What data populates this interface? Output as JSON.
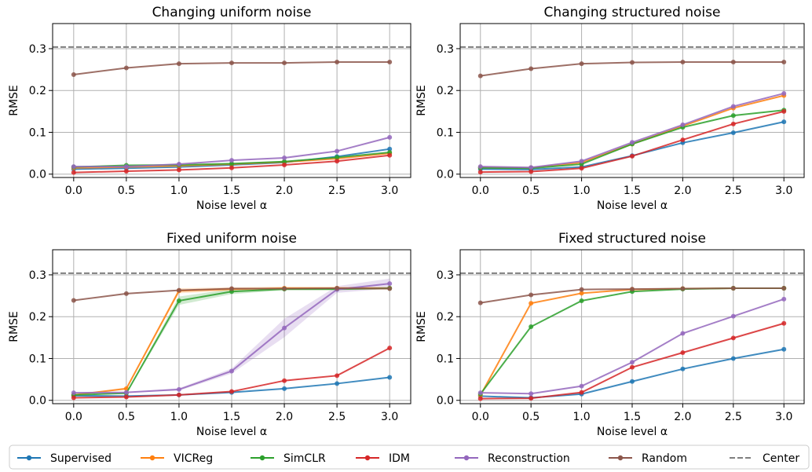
{
  "colors": {
    "Supervised": "#1f77b4",
    "VICReg": "#ff7f0e",
    "SimCLR": "#2ca02c",
    "IDM": "#d62728",
    "Reconstruction": "#9467bd",
    "Random": "#8c564b",
    "Center": "#7f7f7f"
  },
  "legend": {
    "placement": "bottom",
    "entries": [
      {
        "name": "Supervised",
        "style": "line-marker"
      },
      {
        "name": "VICReg",
        "style": "line"
      },
      {
        "name": "SimCLR",
        "style": "line"
      },
      {
        "name": "IDM",
        "style": "line"
      },
      {
        "name": "Reconstruction",
        "style": "line"
      },
      {
        "name": "Random",
        "style": "line"
      },
      {
        "name": "Center",
        "style": "dashed"
      }
    ]
  },
  "chart_data": [
    {
      "type": "line",
      "title": "Changing uniform noise",
      "xlabel": "Noise level α",
      "ylabel": "RMSE",
      "x": [
        0.0,
        0.5,
        1.0,
        1.5,
        2.0,
        2.5,
        3.0
      ],
      "xticks": [
        "0.0",
        "0.5",
        "1.0",
        "1.5",
        "2.0",
        "2.5",
        "3.0"
      ],
      "yticks": [
        "0.0",
        "0.1",
        "0.2",
        "0.3"
      ],
      "xlim": [
        -0.2,
        3.2
      ],
      "ylim": [
        -0.008,
        0.36
      ],
      "grid": true,
      "center": 0.304,
      "series": [
        {
          "name": "Supervised",
          "values": [
            0.012,
            0.014,
            0.017,
            0.022,
            0.028,
            0.042,
            0.06
          ]
        },
        {
          "name": "VICReg",
          "values": [
            0.015,
            0.017,
            0.02,
            0.024,
            0.029,
            0.037,
            0.05
          ]
        },
        {
          "name": "SimCLR",
          "values": [
            0.017,
            0.021,
            0.022,
            0.025,
            0.03,
            0.04,
            0.052
          ]
        },
        {
          "name": "IDM",
          "values": [
            0.004,
            0.007,
            0.01,
            0.015,
            0.022,
            0.031,
            0.045
          ]
        },
        {
          "name": "Reconstruction",
          "values": [
            0.018,
            0.018,
            0.024,
            0.033,
            0.039,
            0.055,
            0.088
          ]
        },
        {
          "name": "Random",
          "values": [
            0.238,
            0.254,
            0.264,
            0.266,
            0.266,
            0.268,
            0.268
          ]
        }
      ]
    },
    {
      "type": "line",
      "title": "Changing structured noise",
      "xlabel": "Noise level α",
      "ylabel": "RMSE",
      "x": [
        0.0,
        0.5,
        1.0,
        1.5,
        2.0,
        2.5,
        3.0
      ],
      "xticks": [
        "0.0",
        "0.5",
        "1.0",
        "1.5",
        "2.0",
        "2.5",
        "3.0"
      ],
      "yticks": [
        "0.0",
        "0.1",
        "0.2",
        "0.3"
      ],
      "xlim": [
        -0.2,
        3.2
      ],
      "ylim": [
        -0.008,
        0.36
      ],
      "grid": true,
      "center": 0.304,
      "series": [
        {
          "name": "Supervised",
          "values": [
            0.012,
            0.011,
            0.017,
            0.044,
            0.075,
            0.099,
            0.125
          ]
        },
        {
          "name": "VICReg",
          "values": [
            0.016,
            0.015,
            0.028,
            0.072,
            0.115,
            0.158,
            0.188
          ]
        },
        {
          "name": "SimCLR",
          "values": [
            0.015,
            0.014,
            0.024,
            0.072,
            0.112,
            0.14,
            0.153
          ]
        },
        {
          "name": "IDM",
          "values": [
            0.005,
            0.006,
            0.014,
            0.043,
            0.082,
            0.12,
            0.15
          ]
        },
        {
          "name": "Reconstruction",
          "values": [
            0.018,
            0.016,
            0.031,
            0.076,
            0.118,
            0.162,
            0.193
          ]
        },
        {
          "name": "Random",
          "values": [
            0.235,
            0.252,
            0.264,
            0.267,
            0.268,
            0.268,
            0.268
          ]
        }
      ]
    },
    {
      "type": "line",
      "title": "Fixed uniform noise",
      "xlabel": "Noise level α",
      "ylabel": "RMSE",
      "x": [
        0.0,
        0.5,
        1.0,
        1.5,
        2.0,
        2.5,
        3.0
      ],
      "xticks": [
        "0.0",
        "0.5",
        "1.0",
        "1.5",
        "2.0",
        "2.5",
        "3.0"
      ],
      "yticks": [
        "0.0",
        "0.1",
        "0.2",
        "0.3"
      ],
      "xlim": [
        -0.2,
        3.2
      ],
      "ylim": [
        -0.008,
        0.36
      ],
      "grid": true,
      "center": 0.304,
      "series": [
        {
          "name": "Supervised",
          "values": [
            0.011,
            0.01,
            0.013,
            0.019,
            0.028,
            0.04,
            0.055
          ]
        },
        {
          "name": "VICReg",
          "values": [
            0.013,
            0.028,
            0.262,
            0.266,
            0.268,
            0.268,
            0.268
          ]
        },
        {
          "name": "SimCLR",
          "values": [
            0.013,
            0.017,
            0.238,
            0.26,
            0.266,
            0.266,
            0.268
          ]
        },
        {
          "name": "IDM",
          "values": [
            0.006,
            0.008,
            0.013,
            0.021,
            0.047,
            0.059,
            0.125
          ]
        },
        {
          "name": "Reconstruction",
          "values": [
            0.018,
            0.019,
            0.026,
            0.07,
            0.173,
            0.265,
            0.279
          ]
        },
        {
          "name": "Random",
          "values": [
            0.239,
            0.255,
            0.263,
            0.267,
            0.267,
            0.268,
            0.267
          ]
        }
      ]
    },
    {
      "type": "line",
      "title": "Fixed structured noise",
      "xlabel": "Noise level α",
      "ylabel": "RMSE",
      "x": [
        0.0,
        0.5,
        1.0,
        1.5,
        2.0,
        2.5,
        3.0
      ],
      "xticks": [
        "0.0",
        "0.5",
        "1.0",
        "1.5",
        "2.0",
        "2.5",
        "3.0"
      ],
      "yticks": [
        "0.0",
        "0.1",
        "0.2",
        "0.3"
      ],
      "xlim": [
        -0.2,
        3.2
      ],
      "ylim": [
        -0.008,
        0.36
      ],
      "grid": true,
      "center": 0.304,
      "series": [
        {
          "name": "Supervised",
          "values": [
            0.01,
            0.006,
            0.015,
            0.045,
            0.075,
            0.1,
            0.122
          ]
        },
        {
          "name": "VICReg",
          "values": [
            0.012,
            0.232,
            0.256,
            0.265,
            0.267,
            0.268,
            0.268
          ]
        },
        {
          "name": "SimCLR",
          "values": [
            0.015,
            0.176,
            0.238,
            0.26,
            0.266,
            0.268,
            0.268
          ]
        },
        {
          "name": "IDM",
          "values": [
            0.004,
            0.005,
            0.019,
            0.079,
            0.114,
            0.149,
            0.184
          ]
        },
        {
          "name": "Reconstruction",
          "values": [
            0.018,
            0.016,
            0.034,
            0.091,
            0.16,
            0.201,
            0.242
          ]
        },
        {
          "name": "Random",
          "values": [
            0.233,
            0.252,
            0.265,
            0.266,
            0.267,
            0.268,
            0.268
          ]
        }
      ]
    }
  ]
}
